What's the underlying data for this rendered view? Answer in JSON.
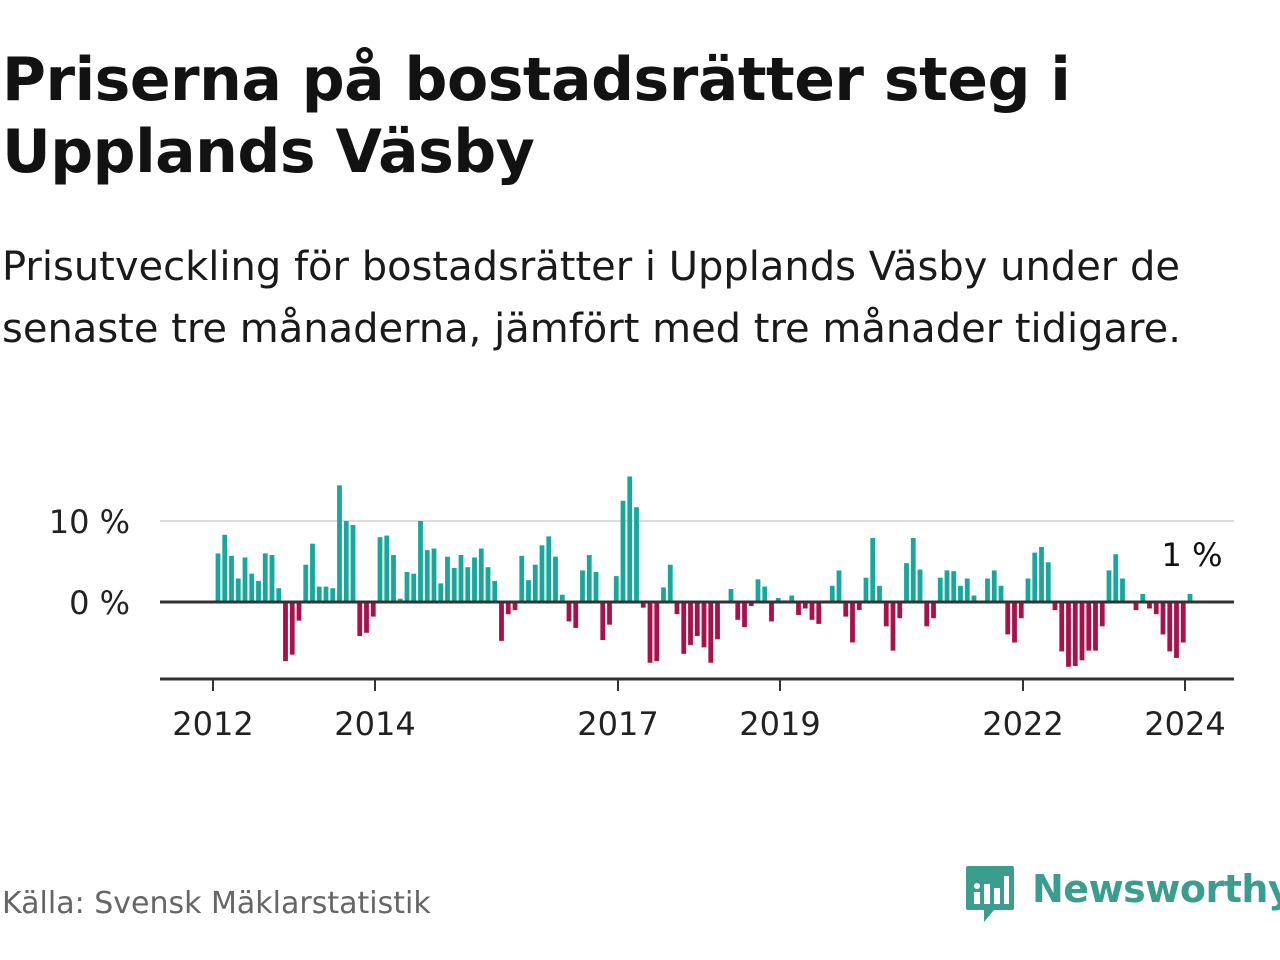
{
  "title": "Priserna på bostadsrätter steg i Upplands Väsby",
  "subtitle": "Prisutveckling för bostadsrätter i Upplands Väsby under de senaste tre månaderna, jämfört med tre månader tidigare.",
  "source": "Källa: Svensk Mäklarstatistik",
  "brand": "Newsworthy",
  "colors": {
    "positive": "#17a89b",
    "negative": "#a8114a",
    "brand": "#3a9d8e",
    "gridline": "#dddddd",
    "axis": "#333333"
  },
  "chart_data": {
    "type": "bar",
    "title": "Priserna på bostadsrätter steg i Upplands Väsby",
    "xlabel": "",
    "ylabel": "",
    "ylim": [
      -9,
      16
    ],
    "y_ticks": [
      0,
      10
    ],
    "y_tick_labels": [
      "0 %",
      "10 %"
    ],
    "x_ticks": [
      "2012",
      "2014",
      "2017",
      "2019",
      "2022",
      "2024"
    ],
    "first_month": "2012-01",
    "last_label": "1 %",
    "series": [
      {
        "name": "Prisutveckling (%)",
        "values": [
          6,
          8.3,
          5.7,
          2.9,
          5.5,
          3.5,
          2.6,
          6,
          5.8,
          1.7,
          -7.3,
          -6.5,
          -2.3,
          4.6,
          7.2,
          1.9,
          1.9,
          1.7,
          14.4,
          10,
          9.5,
          -4.2,
          -3.8,
          -1.8,
          8,
          8.2,
          5.8,
          0.4,
          3.7,
          3.5,
          10,
          6.4,
          6.6,
          2.3,
          5.6,
          4.2,
          5.8,
          4.3,
          5.5,
          6.6,
          4.3,
          2.6,
          -4.8,
          -1.5,
          -1,
          5.7,
          2.7,
          4.6,
          7,
          8.1,
          5.6,
          0.9,
          -2.4,
          -3.2,
          3.9,
          5.8,
          3.7,
          -4.7,
          -2.8,
          3.2,
          12.5,
          15.5,
          11.7,
          -0.7,
          -7.5,
          -7.3,
          1.8,
          4.6,
          -1.5,
          -6.4,
          -5.3,
          -4.2,
          -5.6,
          -7.5,
          -4.6,
          0,
          1.6,
          -2.2,
          -3.1,
          -0.5,
          2.8,
          1.9,
          -2.4,
          0.5,
          0.2,
          0.8,
          -1.6,
          -0.8,
          -2.2,
          -2.7,
          0,
          2,
          3.9,
          -1.8,
          -5,
          -1,
          3,
          7.9,
          2,
          -3,
          -6,
          -2,
          4.8,
          7.9,
          4,
          -3,
          -2,
          3,
          3.9,
          3.8,
          2,
          2.9,
          0.8,
          0,
          2.9,
          3.9,
          2,
          -4,
          -5,
          -2,
          2.9,
          6.1,
          6.8,
          4.9,
          -1,
          -6.1,
          -8,
          -7.9,
          -7.2,
          -6,
          -6,
          -3,
          3.9,
          5.9,
          2.9,
          0,
          -1,
          1,
          -0.8,
          -1.5,
          -4,
          -6.1,
          -6.9,
          -5,
          1
        ]
      }
    ]
  }
}
